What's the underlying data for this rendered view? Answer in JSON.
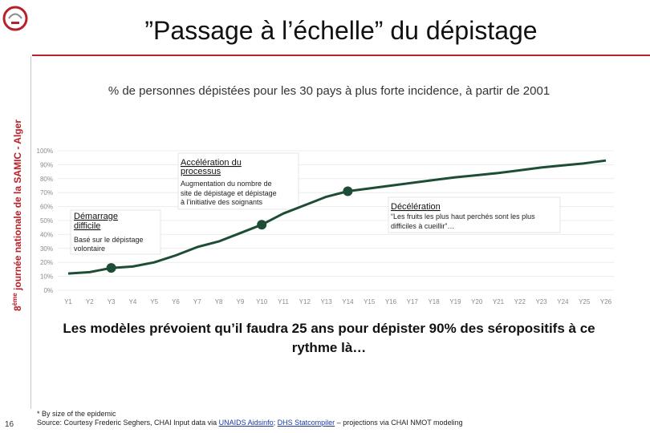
{
  "slide": {
    "title": "”Passage à l’échelle” du dépistage",
    "sidebar_text_num": "8",
    "sidebar_text_sup": "ème",
    "sidebar_text_rest": " journée nationale de la SAMIC - Alger",
    "headline": "Les modèles prévoient qu’il faudra 25 ans pour dépister 90% des séropositifs à ce rythme là…",
    "footnote_line1": "* By size of the epidemic",
    "footnote_line2_pre": "Source: Courtesy Frederic Seghers, CHAI Input data via ",
    "footnote_link1": "UNAIDS Aidsinfo",
    "footnote_sep": "; ",
    "footnote_link2": "DHS Statcompiler",
    "footnote_line2_post": " – projections via CHAI NMOT modeling",
    "page_number": "16",
    "accent_color": "#b8202a"
  },
  "chart_data": {
    "type": "line",
    "title": "% de personnes dépistées pour les 30 pays à plus forte incidence, à partir de 2001",
    "x": [
      "Y1",
      "Y2",
      "Y3",
      "Y4",
      "Y5",
      "Y6",
      "Y7",
      "Y8",
      "Y9",
      "Y10",
      "Y11",
      "Y12",
      "Y13",
      "Y14",
      "Y15",
      "Y16",
      "Y17",
      "Y18",
      "Y19",
      "Y20",
      "Y21",
      "Y22",
      "Y23",
      "Y24",
      "Y25",
      "Y26"
    ],
    "y_ticks": [
      "0%",
      "10%",
      "20%",
      "30%",
      "40%",
      "50%",
      "60%",
      "70%",
      "80%",
      "90%",
      "100%"
    ],
    "ylim": [
      0,
      100
    ],
    "series": [
      {
        "values": [
          12,
          13,
          16,
          17,
          20,
          25,
          31,
          35,
          41,
          47,
          55,
          61,
          67,
          71,
          73,
          75,
          77,
          79,
          81,
          82.5,
          84,
          86,
          88,
          89.5,
          91,
          93
        ]
      }
    ],
    "markers": [
      {
        "x": "Y3",
        "y": 16
      },
      {
        "x": "Y10",
        "y": 47
      },
      {
        "x": "Y14",
        "y": 71
      }
    ],
    "line_color": "#1e4d35",
    "annotations": [
      {
        "title": "Démarrage difficile",
        "text": "Basé sur le dépistage volontaire"
      },
      {
        "title": "Accélération du processus",
        "text": "Augmentation du nombre de site de dépistage et dépistage à l’initiative des soignants"
      },
      {
        "title": "Décélération",
        "text": "“Les fruits les plus haut perchés sont les plus difficiles à cueillir”…"
      }
    ]
  }
}
